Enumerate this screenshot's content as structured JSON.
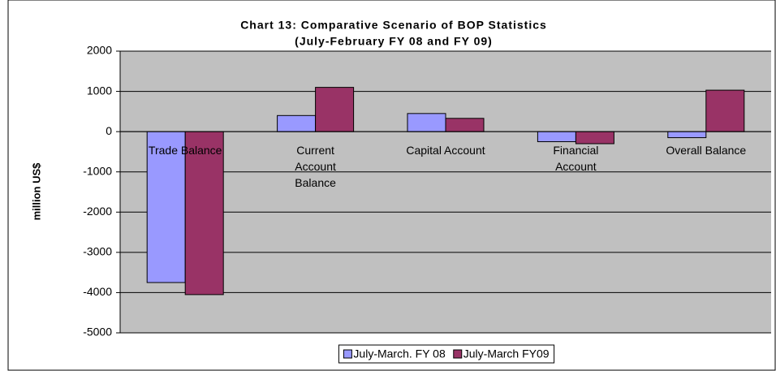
{
  "chart_data": {
    "type": "bar",
    "title": "Chart 13: Comparative Scenario of BOP Statistics",
    "subtitle": "(July-February FY 08 and FY 09)",
    "y_label": "million US$",
    "categories": [
      "Trade Balance",
      "Current Account Balance",
      "Capital Account",
      "Financial Account",
      "Overall Balance"
    ],
    "series": [
      {
        "name": "July-March. FY 08",
        "color": "#9999ff",
        "values": [
          -3750,
          400,
          450,
          -250,
          -150
        ]
      },
      {
        "name": "July-March FY09",
        "color": "#993366",
        "values": [
          -4050,
          1100,
          330,
          -300,
          1030
        ]
      }
    ],
    "ylim": [
      -5000,
      2000
    ],
    "yticks": [
      -5000,
      -4000,
      -3000,
      -2000,
      -1000,
      0,
      1000,
      2000
    ],
    "grid": true,
    "legend": "bottom"
  }
}
